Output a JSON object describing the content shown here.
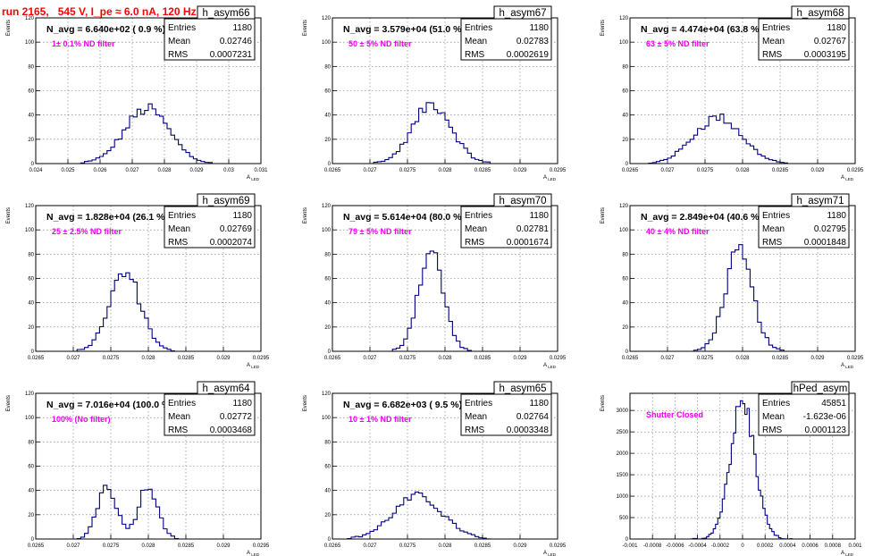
{
  "page_title": "run 2165,   545 V, I_pe ≈ 6.0 nA, 120 Hz",
  "stats_labels": {
    "entries": "Entries",
    "mean": "Mean",
    "rms": "RMS"
  },
  "chart_data": [
    {
      "type": "histogram",
      "name": "h_asym66",
      "navg": "N_avg = 6.640e+02 ( 0.9 %)",
      "note": "1± 0.1% ND filter",
      "ylabel": "Events",
      "xlabel": "A_LED",
      "xlim": [
        0.024,
        0.031
      ],
      "ylim": [
        0,
        120
      ],
      "xticks": [
        "0.024",
        "0.025",
        "0.026",
        "0.027",
        "0.028",
        "0.029",
        "0.03",
        "0.031"
      ],
      "yticks": [
        "0",
        "20",
        "40",
        "60",
        "80",
        "100",
        "120"
      ],
      "entries": "1180",
      "mean": "0.02746",
      "rms": "0.0007231",
      "bins": 60,
      "peaks": [
        [
          0.02746,
          0.0007,
          45
        ]
      ]
    },
    {
      "type": "histogram",
      "name": "h_asym67",
      "navg": "N_avg = 3.579e+04 (51.0 %)",
      "note": "50 ± 5% ND filter",
      "ylabel": "Events",
      "xlabel": "A_LED",
      "xlim": [
        0.0265,
        0.0295
      ],
      "ylim": [
        0,
        120
      ],
      "xticks": [
        "0.0265",
        "0.027",
        "0.0275",
        "0.028",
        "0.0285",
        "0.029",
        "0.0295"
      ],
      "yticks": [
        "0",
        "20",
        "40",
        "60",
        "80",
        "100",
        "120"
      ],
      "entries": "1180",
      "mean": "0.02783",
      "rms": "0.0002619",
      "bins": 60,
      "peaks": [
        [
          0.02783,
          0.00026,
          49
        ]
      ]
    },
    {
      "type": "histogram",
      "name": "h_asym68",
      "navg": "N_avg = 4.474e+04 (63.8 %)",
      "note": "63 ± 5% ND filter",
      "ylabel": "Events",
      "xlabel": "A_LED",
      "xlim": [
        0.0265,
        0.0295
      ],
      "ylim": [
        0,
        120
      ],
      "xticks": [
        "0.0265",
        "0.027",
        "0.0275",
        "0.028",
        "0.0285",
        "0.029",
        "0.0295"
      ],
      "yticks": [
        "0",
        "20",
        "40",
        "60",
        "80",
        "100",
        "120"
      ],
      "entries": "1180",
      "mean": "0.02767",
      "rms": "0.0003195",
      "bins": 60,
      "peaks": [
        [
          0.02767,
          0.00032,
          38
        ]
      ]
    },
    {
      "type": "histogram",
      "name": "h_asym69",
      "navg": "N_avg = 1.828e+04 (26.1 %)",
      "note": "25 ± 2.5% ND filter",
      "ylabel": "Events",
      "xlabel": "A_LED",
      "xlim": [
        0.0265,
        0.0295
      ],
      "ylim": [
        0,
        120
      ],
      "xticks": [
        "0.0265",
        "0.027",
        "0.0275",
        "0.028",
        "0.0285",
        "0.029",
        "0.0295"
      ],
      "yticks": [
        "0",
        "20",
        "40",
        "60",
        "80",
        "100",
        "120"
      ],
      "entries": "1180",
      "mean": "0.02769",
      "rms": "0.0002074",
      "bins": 60,
      "peaks": [
        [
          0.02769,
          0.00021,
          64
        ]
      ]
    },
    {
      "type": "histogram",
      "name": "h_asym70",
      "navg": "N_avg = 5.614e+04 (80.0 %)",
      "note": "79 ± 5% ND filter",
      "ylabel": "Events",
      "xlabel": "A_LED",
      "xlim": [
        0.0265,
        0.0295
      ],
      "ylim": [
        0,
        120
      ],
      "xticks": [
        "0.0265",
        "0.027",
        "0.0275",
        "0.028",
        "0.0285",
        "0.029",
        "0.0295"
      ],
      "yticks": [
        "0",
        "20",
        "40",
        "60",
        "80",
        "100",
        "120"
      ],
      "entries": "1180",
      "mean": "0.02781",
      "rms": "0.0001674",
      "bins": 60,
      "peaks": [
        [
          0.02781,
          0.000167,
          82
        ]
      ]
    },
    {
      "type": "histogram",
      "name": "h_asym71",
      "navg": "N_avg = 2.849e+04 (40.6 %)",
      "note": "40 ± 4% ND filter",
      "ylabel": "Events",
      "xlabel": "A_LED",
      "xlim": [
        0.0265,
        0.0295
      ],
      "ylim": [
        0,
        120
      ],
      "xticks": [
        "0.0265",
        "0.027",
        "0.0275",
        "0.028",
        "0.0285",
        "0.029",
        "0.0295"
      ],
      "yticks": [
        "0",
        "20",
        "40",
        "60",
        "80",
        "100",
        "120"
      ],
      "entries": "1180",
      "mean": "0.02795",
      "rms": "0.0001848",
      "bins": 60,
      "peaks": [
        [
          0.02795,
          0.000185,
          80
        ]
      ]
    },
    {
      "type": "histogram",
      "name": "h_asym64",
      "navg": "N_avg = 7.016e+04 (100.0 %)",
      "note": "100% (No filter)",
      "ylabel": "Events",
      "xlabel": "A_LED",
      "xlim": [
        0.0265,
        0.0295
      ],
      "ylim": [
        0,
        120
      ],
      "xticks": [
        "0.0265",
        "0.027",
        "0.0275",
        "0.028",
        "0.0285",
        "0.029",
        "0.0295"
      ],
      "yticks": [
        "0",
        "20",
        "40",
        "60",
        "80",
        "100",
        "120"
      ],
      "entries": "1180",
      "mean": "0.02772",
      "rms": "0.0003468",
      "bins": 60,
      "peaks": [
        [
          0.02745,
          0.00013,
          44
        ],
        [
          0.028,
          0.00013,
          44
        ]
      ]
    },
    {
      "type": "histogram",
      "name": "h_asym65",
      "navg": "N_avg = 6.682e+03 ( 9.5 %)",
      "note": "10 ± 1% ND filter",
      "ylabel": "Events",
      "xlabel": "A_LED",
      "xlim": [
        0.0265,
        0.0295
      ],
      "ylim": [
        0,
        120
      ],
      "xticks": [
        "0.0265",
        "0.027",
        "0.0275",
        "0.028",
        "0.0285",
        "0.029",
        "0.0295"
      ],
      "yticks": [
        "0",
        "20",
        "40",
        "60",
        "80",
        "100",
        "120"
      ],
      "entries": "1180",
      "mean": "0.02764",
      "rms": "0.0003348",
      "bins": 60,
      "peaks": [
        [
          0.02764,
          0.00033,
          35
        ]
      ]
    },
    {
      "type": "histogram",
      "name": "hPed_asym",
      "navg": "",
      "note": "Shutter Closed",
      "ylabel": "Events",
      "xlabel": "A_LED",
      "xlim": [
        -0.001,
        0.001
      ],
      "ylim": [
        0,
        3400
      ],
      "xticks": [
        "-0.001",
        "-0.0008",
        "-0.0006",
        "-0.0004",
        "-0.0002",
        "0",
        "0.0002",
        "0.0004",
        "0.0006",
        "0.0008",
        "0.001"
      ],
      "yticks": [
        "0",
        "500",
        "1000",
        "1500",
        "2000",
        "2500",
        "3000"
      ],
      "entries": "45851",
      "mean": "-1.623e-06",
      "rms": "0.0001123",
      "bins": 100,
      "peaks": [
        [
          0.0,
          0.00011,
          3150
        ]
      ]
    }
  ]
}
